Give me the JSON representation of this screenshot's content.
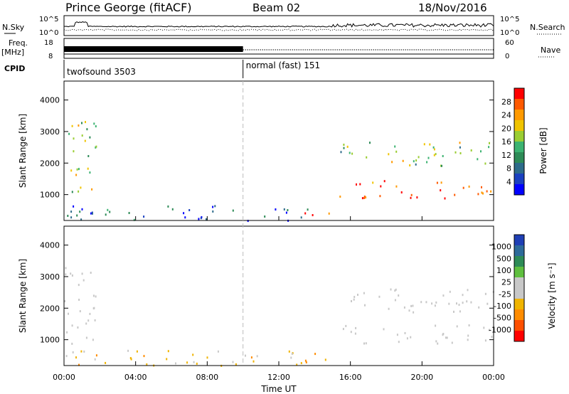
{
  "header": {
    "station": "Prince George (fitACF)",
    "beam": "Beam 02",
    "date": "18/Nov/2016"
  },
  "summary_panels": {
    "nsky_label": "N.Sky",
    "nsky_ticks": [
      "10^5",
      "10^0"
    ],
    "nsearch_label": "N.Search",
    "nsearch_ticks": [
      "10^5",
      "10^0"
    ],
    "freq_label": "Freq.",
    "freq_unit": "[MHz]",
    "freq_ticks": [
      "18",
      "8"
    ],
    "nave_label": "Nave",
    "nave_ticks": [
      "60",
      "0"
    ],
    "cpid_label": "CPID",
    "cpid_segments": [
      {
        "name": "twofsound 3503",
        "start_hour": 0,
        "end_hour": 10
      },
      {
        "name": "normal (fast) 151",
        "start_hour": 10,
        "end_hour": 24
      }
    ]
  },
  "x_axis": {
    "label": "Time UT",
    "ticks": [
      "00:00",
      "04:00",
      "08:00",
      "12:00",
      "16:00",
      "20:00",
      "00:00"
    ],
    "range_hours": [
      0,
      24
    ]
  },
  "chart_data": [
    {
      "type": "heatmap",
      "name": "power",
      "ylabel": "Slant Range [km]",
      "yticks": [
        1000,
        2000,
        3000,
        4000
      ],
      "ylim": [
        180,
        4600
      ],
      "colorbar_label": "Power [dB]",
      "colorbar_ticks": [
        "28",
        "24",
        "20",
        "16",
        "12",
        "8",
        "4"
      ],
      "colorbar_colors": [
        "#ff0000",
        "#ff5a00",
        "#ff9a00",
        "#f0c400",
        "#9acd32",
        "#3cb371",
        "#2e8b57",
        "#2d6b8a",
        "#1a40c0",
        "#0000ff"
      ],
      "regions": [
        {
          "desc": "early echoes",
          "x": [
            0.0,
            1.8
          ],
          "y": [
            900,
            3500
          ],
          "level": 0.55
        },
        {
          "desc": "near range band",
          "x": [
            0.0,
            14.0
          ],
          "y": [
            200,
            700
          ],
          "level": 0.2
        },
        {
          "desc": "bright patch",
          "x": [
            13.4,
            14.9
          ],
          "y": [
            350,
            650
          ],
          "level": 0.95
        },
        {
          "desc": "main band",
          "x": [
            15.2,
            24.0
          ],
          "y": [
            900,
            1500
          ],
          "level": 0.9
        },
        {
          "desc": "upper band",
          "x": [
            15.2,
            24.0
          ],
          "y": [
            1900,
            2700
          ],
          "level": 0.5
        }
      ]
    },
    {
      "type": "heatmap",
      "name": "velocity",
      "ylabel": "Slant Range [km]",
      "yticks": [
        1000,
        2000,
        3000,
        4000
      ],
      "ylim": [
        180,
        4600
      ],
      "colorbar_label": "Velocity [m s⁻¹]",
      "colorbar_ticks": [
        "1000",
        "500",
        "100",
        "25",
        "-25",
        "-100",
        "-500",
        "-1000"
      ],
      "colorbar_colors": [
        "#1f3fb5",
        "#2e6b9a",
        "#2e8b57",
        "#5fbf3f",
        "#c8c8c8",
        "#c8c8c8",
        "#f0b400",
        "#ff8c00",
        "#ff5000",
        "#ff0000"
      ],
      "regions": [
        {
          "desc": "early echoes",
          "x": [
            0.0,
            1.8
          ],
          "y": [
            900,
            3500
          ],
          "level": 0.0
        },
        {
          "desc": "near range band",
          "x": [
            0.0,
            14.0
          ],
          "y": [
            200,
            700
          ],
          "level": -0.3
        },
        {
          "desc": "bright patch",
          "x": [
            13.4,
            14.9
          ],
          "y": [
            350,
            650
          ],
          "level": -0.4
        },
        {
          "desc": "main band",
          "x": [
            15.2,
            24.0
          ],
          "y": [
            900,
            1500
          ],
          "level": 0.0
        },
        {
          "desc": "upper band",
          "x": [
            15.2,
            24.0
          ],
          "y": [
            1900,
            2700
          ],
          "level": 0.0
        }
      ]
    }
  ],
  "colors": {
    "frame": "#000000",
    "dashed_line": "#bbbbbb"
  }
}
